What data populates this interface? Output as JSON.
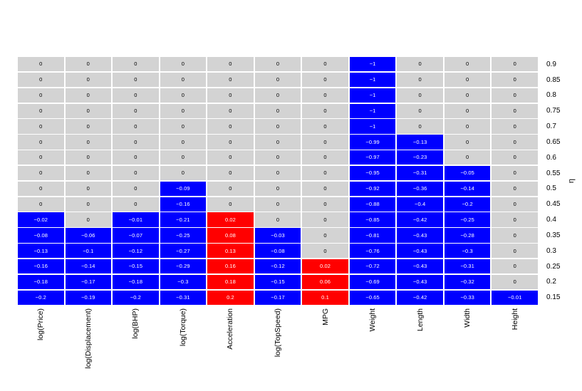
{
  "chart_data": {
    "type": "heatmap",
    "title": "",
    "xlabel": "",
    "ylabel": "η",
    "y_axis_side": "right",
    "grid_gap_color": "#ffffff",
    "colors": {
      "zero_cell": "#d3d3d3",
      "negative_cell": "#0000ff",
      "positive_cell": "#ff0000",
      "text_on_zero": "#000000",
      "text_on_colored": "#ffffff"
    },
    "columns": [
      "log(Price)",
      "log(Displacement)",
      "log(BHP)",
      "log(Torque)",
      "Acceleration",
      "log(TopSpeed)",
      "MPG",
      "Weight",
      "Length",
      "Width",
      "Height"
    ],
    "rows": [
      "0.9",
      "0.85",
      "0.8",
      "0.75",
      "0.7",
      "0.65",
      "0.6",
      "0.55",
      "0.5",
      "0.45",
      "0.4",
      "0.35",
      "0.3",
      "0.25",
      "0.2",
      "0.15"
    ],
    "values": [
      [
        0,
        0,
        0,
        0,
        0,
        0,
        0,
        -1,
        0,
        0,
        0
      ],
      [
        0,
        0,
        0,
        0,
        0,
        0,
        0,
        -1,
        0,
        0,
        0
      ],
      [
        0,
        0,
        0,
        0,
        0,
        0,
        0,
        -1,
        0,
        0,
        0
      ],
      [
        0,
        0,
        0,
        0,
        0,
        0,
        0,
        -1,
        0,
        0,
        0
      ],
      [
        0,
        0,
        0,
        0,
        0,
        0,
        0,
        -1,
        0,
        0,
        0
      ],
      [
        0,
        0,
        0,
        0,
        0,
        0,
        0,
        -0.99,
        -0.13,
        0,
        0
      ],
      [
        0,
        0,
        0,
        0,
        0,
        0,
        0,
        -0.97,
        -0.23,
        0,
        0
      ],
      [
        0,
        0,
        0,
        0,
        0,
        0,
        0,
        -0.95,
        -0.31,
        -0.05,
        0
      ],
      [
        0,
        0,
        0,
        -0.09,
        0,
        0,
        0,
        -0.92,
        -0.36,
        -0.14,
        0
      ],
      [
        0,
        0,
        0,
        -0.16,
        0,
        0,
        0,
        -0.88,
        -0.4,
        -0.2,
        0
      ],
      [
        -0.02,
        0,
        -0.01,
        -0.21,
        0.02,
        0,
        0,
        -0.85,
        -0.42,
        -0.25,
        0
      ],
      [
        -0.08,
        -0.06,
        -0.07,
        -0.25,
        0.08,
        -0.03,
        0,
        -0.81,
        -0.43,
        -0.28,
        0
      ],
      [
        -0.13,
        -0.1,
        -0.12,
        -0.27,
        0.13,
        -0.08,
        0,
        -0.76,
        -0.43,
        -0.3,
        0
      ],
      [
        -0.16,
        -0.14,
        -0.15,
        -0.29,
        0.16,
        -0.12,
        0.02,
        -0.72,
        -0.43,
        -0.31,
        0
      ],
      [
        -0.18,
        -0.17,
        -0.18,
        -0.3,
        0.18,
        -0.15,
        0.06,
        -0.69,
        -0.43,
        -0.32,
        0
      ],
      [
        -0.2,
        -0.19,
        -0.2,
        -0.31,
        0.2,
        -0.17,
        0.1,
        -0.65,
        -0.42,
        -0.33,
        -0.01
      ]
    ]
  }
}
